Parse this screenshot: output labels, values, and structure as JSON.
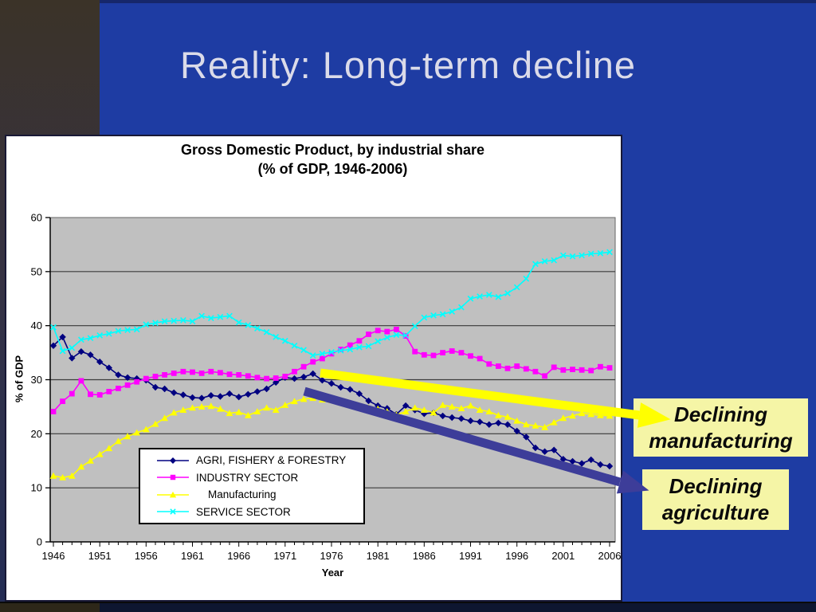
{
  "slide": {
    "title": "Reality: Long-term decline",
    "background_color": "#1E3CA3",
    "title_color": "#DBDBE9",
    "side_strip_colors": [
      "#3B3328",
      "#232C55"
    ]
  },
  "callouts": {
    "manufacturing": {
      "line1": "Declining",
      "line2": "manufacturing",
      "box_color": "#F5F5A6",
      "arrow_color": "#FFFF00"
    },
    "agriculture": {
      "line1": "Declining",
      "line2": "agriculture",
      "box_color": "#F5F5A6",
      "arrow_color": "#3D3D99"
    }
  },
  "chart_data": {
    "type": "line",
    "title": "Gross Domestic Product, by industrial share",
    "subtitle": "(% of GDP, 1946-2006)",
    "xlabel": "Year",
    "ylabel": "% of GDP",
    "ylim": [
      0,
      60
    ],
    "ytick_step": 10,
    "xtick_labels": [
      1946,
      1951,
      1956,
      1961,
      1966,
      1971,
      1976,
      1981,
      1986,
      1991,
      1996,
      2001,
      2006
    ],
    "grid": true,
    "plot_bg": "#C0C0C0",
    "legend_position": "inside-bottom-left",
    "x": [
      1946,
      1947,
      1948,
      1949,
      1950,
      1951,
      1952,
      1953,
      1954,
      1955,
      1956,
      1957,
      1958,
      1959,
      1960,
      1961,
      1962,
      1963,
      1964,
      1965,
      1966,
      1967,
      1968,
      1969,
      1970,
      1971,
      1972,
      1973,
      1974,
      1975,
      1976,
      1977,
      1978,
      1979,
      1980,
      1981,
      1982,
      1983,
      1984,
      1985,
      1986,
      1987,
      1988,
      1989,
      1990,
      1991,
      1992,
      1993,
      1994,
      1995,
      1996,
      1997,
      1998,
      1999,
      2000,
      2001,
      2002,
      2003,
      2004,
      2005,
      2006
    ],
    "series": [
      {
        "name": "AGRI, FISHERY & FORESTRY",
        "color": "#000080",
        "marker": "diamond",
        "values": [
          36.3,
          37.9,
          34.0,
          35.2,
          34.6,
          33.3,
          32.2,
          30.9,
          30.4,
          30.2,
          29.9,
          28.6,
          28.3,
          27.6,
          27.2,
          26.7,
          26.6,
          27.1,
          26.9,
          27.4,
          26.8,
          27.3,
          27.8,
          28.3,
          29.5,
          30.4,
          30.2,
          30.5,
          31.1,
          29.9,
          29.3,
          28.6,
          28.2,
          27.4,
          26.1,
          25.2,
          24.7,
          23.6,
          25.2,
          24.4,
          23.7,
          23.9,
          23.3,
          23.0,
          22.8,
          22.4,
          22.2,
          21.7,
          22.0,
          21.7,
          20.5,
          19.4,
          17.4,
          16.7,
          17.0,
          15.3,
          14.9,
          14.5,
          15.2,
          14.3,
          14.0
        ]
      },
      {
        "name": "INDUSTRY SECTOR",
        "color": "#FF00FF",
        "marker": "square",
        "values": [
          24.1,
          26.0,
          27.4,
          29.8,
          27.3,
          27.2,
          27.8,
          28.4,
          29.0,
          29.6,
          30.2,
          30.6,
          30.9,
          31.2,
          31.5,
          31.4,
          31.2,
          31.5,
          31.3,
          31.0,
          30.9,
          30.7,
          30.4,
          30.2,
          30.3,
          30.6,
          31.5,
          32.4,
          33.3,
          33.9,
          34.8,
          35.6,
          36.4,
          37.2,
          38.4,
          39.1,
          38.9,
          39.3,
          38.1,
          35.2,
          34.6,
          34.5,
          35.0,
          35.3,
          35.0,
          34.4,
          33.9,
          32.9,
          32.5,
          32.1,
          32.5,
          32.0,
          31.5,
          30.7,
          32.3,
          31.8,
          31.9,
          31.8,
          31.7,
          32.4,
          32.2
        ]
      },
      {
        "name": "Manufacturing",
        "color": "#FFFF00",
        "marker": "triangle",
        "values": [
          12.2,
          11.9,
          12.2,
          13.9,
          15.0,
          16.2,
          17.3,
          18.6,
          19.5,
          20.2,
          20.8,
          21.8,
          22.9,
          23.9,
          24.4,
          24.8,
          25.0,
          25.1,
          24.6,
          23.8,
          24.0,
          23.4,
          24.1,
          24.8,
          24.4,
          25.3,
          26.0,
          26.4,
          26.6,
          26.3,
          26.2,
          25.8,
          25.5,
          25.2,
          24.8,
          24.6,
          24.1,
          23.5,
          24.1,
          24.8,
          24.4,
          23.9,
          25.3,
          25.0,
          24.7,
          25.2,
          24.4,
          24.1,
          23.4,
          23.1,
          22.4,
          21.7,
          21.5,
          21.2,
          22.1,
          22.9,
          23.3,
          23.8,
          23.6,
          23.4,
          23.3
        ]
      },
      {
        "name": "SERVICE SECTOR",
        "color": "#00FFFF",
        "marker": "x",
        "values": [
          39.7,
          35.3,
          35.9,
          37.4,
          37.7,
          38.2,
          38.5,
          39.0,
          39.2,
          39.3,
          40.2,
          40.5,
          40.8,
          40.9,
          41.0,
          40.8,
          41.8,
          41.4,
          41.6,
          41.8,
          40.6,
          40.1,
          39.5,
          38.8,
          37.9,
          37.2,
          36.3,
          35.5,
          34.5,
          34.8,
          35.1,
          35.4,
          35.6,
          36.0,
          36.2,
          37.1,
          37.8,
          38.3,
          38.2,
          39.9,
          41.5,
          41.9,
          42.1,
          42.6,
          43.4,
          45.0,
          45.4,
          45.7,
          45.3,
          46.0,
          47.1,
          48.7,
          51.4,
          51.9,
          52.1,
          53.0,
          52.8,
          53.0,
          53.3,
          53.4,
          53.6
        ]
      }
    ]
  }
}
